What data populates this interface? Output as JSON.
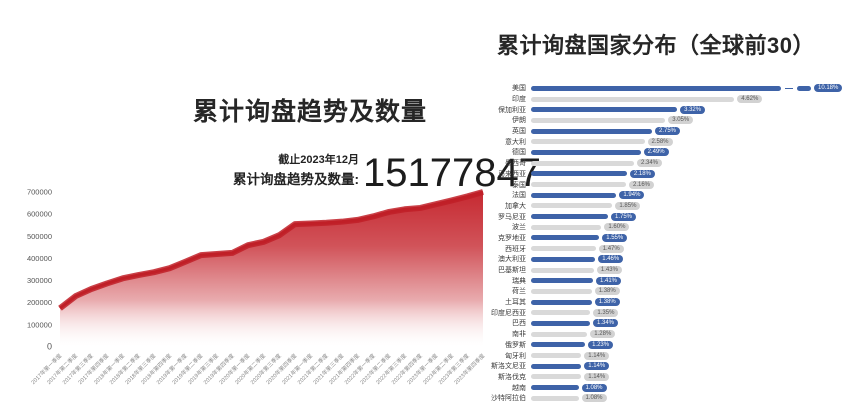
{
  "page": {
    "background": "#ffffff"
  },
  "left_chart": {
    "title": "累计询盘趋势及数量",
    "stat": {
      "as_of": "截止2023年12月",
      "label": "累计询盘趋势及数量:",
      "value": "15177847"
    }
  },
  "right_chart": {
    "title": "累计询盘国家分布（全球前30）"
  },
  "colors": {
    "trend_line": "#c01f27",
    "trend_fill": "#c4232b",
    "bar_blue": "#3e63a8",
    "bar_gray": "#d9d9d9",
    "pill_blue": "#3e63a8",
    "pill_gray": "#d2d2d2",
    "pill_blue_text": "#ffffff",
    "pill_gray_text": "#555555",
    "axis_text": "#555555",
    "x_label_text": "#8a8a8a"
  },
  "chart_data": [
    {
      "type": "area",
      "title": "累计询盘趋势及数量",
      "xlabel": "",
      "ylabel": "",
      "ylim": [
        0,
        700000
      ],
      "yticks": [
        0,
        100000,
        200000,
        300000,
        400000,
        500000,
        600000,
        700000
      ],
      "grid": false,
      "x": [
        "2017年第一季度",
        "2017年第二季度",
        "2017年第三季度",
        "2017年第四季度",
        "2018年第一季度",
        "2018年第二季度",
        "2018年第三季度",
        "2018年第四季度",
        "2019年第一季度",
        "2019年第二季度",
        "2019年第三季度",
        "2019年第四季度",
        "2020年第一季度",
        "2020年第二季度",
        "2020年第三季度",
        "2020年第四季度",
        "2021年第一季度",
        "2021年第二季度",
        "2021年第三季度",
        "2021年第四季度",
        "2022年第一季度",
        "2022年第二季度",
        "2022年第三季度",
        "2022年第四季度",
        "2023年第一季度",
        "2023年第二季度",
        "2023年第三季度",
        "2023年第四季度"
      ],
      "values": [
        175000,
        230000,
        262000,
        287000,
        310000,
        325000,
        338000,
        356000,
        385000,
        415000,
        420000,
        425000,
        460000,
        475000,
        505000,
        555000,
        558000,
        561000,
        566000,
        574000,
        590000,
        610000,
        622000,
        628000,
        645000,
        662000,
        680000,
        700000
      ]
    },
    {
      "type": "bar",
      "orientation": "horizontal",
      "title": "累计询盘国家分布（全球前30）",
      "axis_break_on_first_bar": true,
      "legend": "none",
      "categories": [
        "美国",
        "印度",
        "保加利亚",
        "伊朗",
        "英国",
        "意大利",
        "德国",
        "墨西哥",
        "马来西亚",
        "泰国",
        "法国",
        "加拿大",
        "罗马尼亚",
        "波兰",
        "克罗地亚",
        "西班牙",
        "澳大利亚",
        "巴基斯坦",
        "瑞典",
        "荷兰",
        "土耳其",
        "印度尼西亚",
        "巴西",
        "南非",
        "俄罗斯",
        "匈牙利",
        "斯洛文尼亚",
        "斯洛伐克",
        "越南",
        "沙特阿拉伯"
      ],
      "values": [
        10.18,
        4.62,
        3.32,
        3.05,
        2.75,
        2.58,
        2.49,
        2.34,
        2.18,
        2.16,
        1.94,
        1.85,
        1.75,
        1.6,
        1.55,
        1.47,
        1.46,
        1.43,
        1.41,
        1.38,
        1.38,
        1.35,
        1.34,
        1.28,
        1.23,
        1.14,
        1.14,
        1.14,
        1.08,
        1.08
      ],
      "labels": [
        "10.18%",
        "4.62%",
        "3.32%",
        "3.05%",
        "2.75%",
        "2.58%",
        "2.49%",
        "2.34%",
        "2.18%",
        "2.16%",
        "1.94%",
        "1.85%",
        "1.75%",
        "1.60%",
        "1.55%",
        "1.47%",
        "1.46%",
        "1.43%",
        "1.41%",
        "1.38%",
        "1.38%",
        "1.35%",
        "1.34%",
        "1.28%",
        "1.23%",
        "1.14%",
        "1.14%",
        "1.14%",
        "1.08%",
        "1.08%"
      ]
    }
  ]
}
